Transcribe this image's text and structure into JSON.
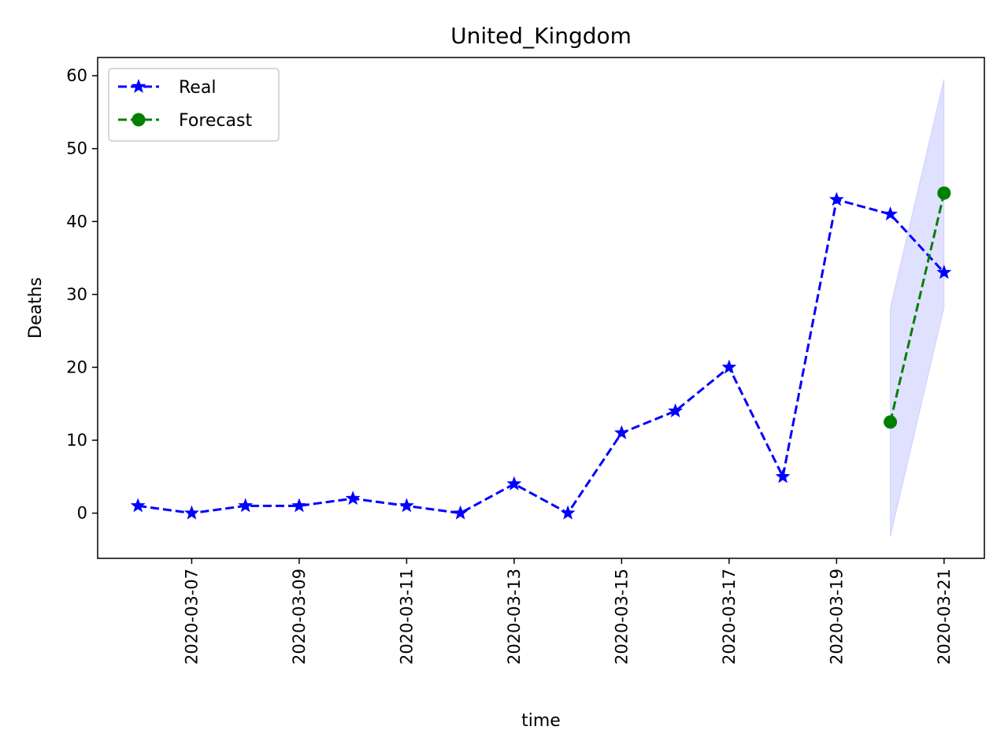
{
  "chart_data": {
    "type": "line",
    "title": "United_Kingdom",
    "xlabel": "time",
    "ylabel": "Deaths",
    "xlim": [
      "2020-03-05 06:00",
      "2020-03-21 18:00"
    ],
    "ylim": [
      -6.2,
      62.5
    ],
    "x_ticks": [
      "2020-03-07",
      "2020-03-09",
      "2020-03-11",
      "2020-03-13",
      "2020-03-15",
      "2020-03-17",
      "2020-03-19",
      "2020-03-21"
    ],
    "y_ticks": [
      0,
      10,
      20,
      30,
      40,
      50,
      60
    ],
    "legend_position": "upper-left",
    "grid": false,
    "series": [
      {
        "name": "Real",
        "color": "#0000ff",
        "line_style": "dashed",
        "marker": "star",
        "x": [
          "2020-03-06",
          "2020-03-07",
          "2020-03-08",
          "2020-03-09",
          "2020-03-10",
          "2020-03-11",
          "2020-03-12",
          "2020-03-13",
          "2020-03-14",
          "2020-03-15",
          "2020-03-16",
          "2020-03-17",
          "2020-03-18",
          "2020-03-19",
          "2020-03-20",
          "2020-03-21"
        ],
        "values": [
          1,
          0,
          1,
          1,
          2,
          1,
          0,
          4,
          0,
          11,
          14,
          20,
          5,
          43,
          41,
          33
        ]
      },
      {
        "name": "Forecast",
        "color": "#008000",
        "line_style": "dashed",
        "marker": "circle",
        "x": [
          "2020-03-20",
          "2020-03-21"
        ],
        "values": [
          12.5,
          43.9
        ]
      }
    ],
    "confidence_band": {
      "color": "#0000ff",
      "opacity": 0.12,
      "x": [
        "2020-03-20",
        "2020-03-21"
      ],
      "lower": [
        -3.2,
        28.2
      ],
      "upper": [
        28.2,
        59.6
      ]
    }
  }
}
